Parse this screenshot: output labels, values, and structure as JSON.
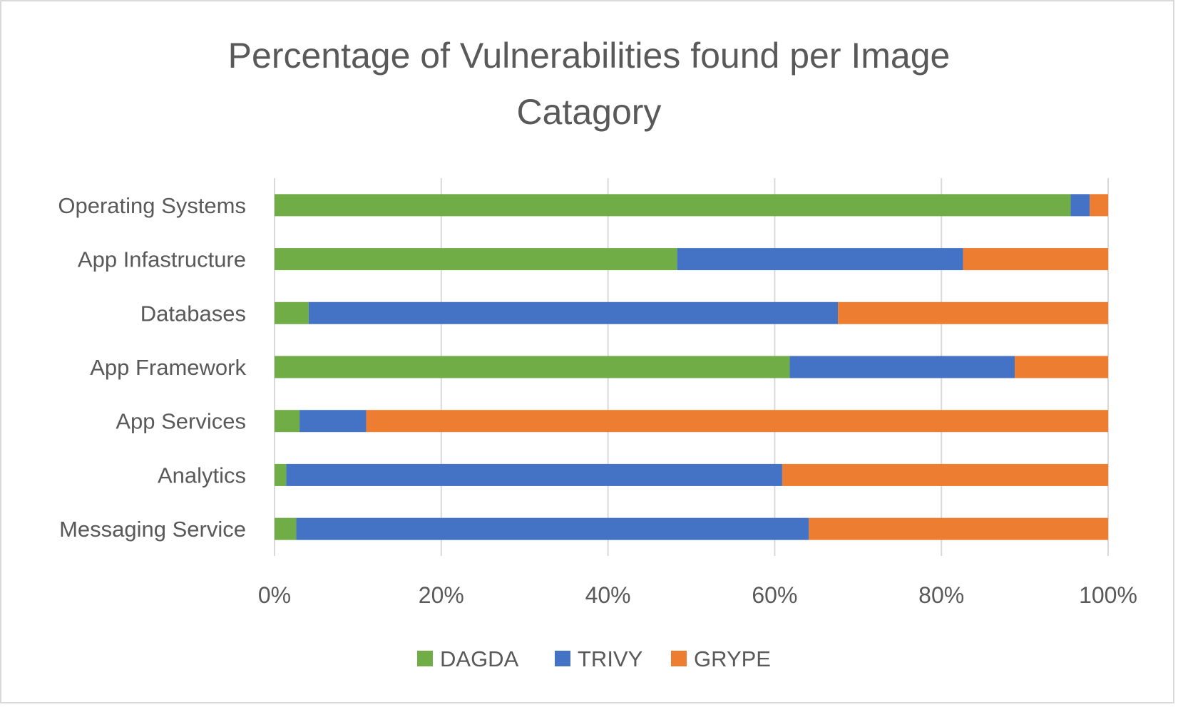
{
  "chart_data": {
    "type": "bar",
    "orientation": "horizontal",
    "stacked": "percent",
    "title": "Percentage of Vulnerabilities found per Image Catagory",
    "title_lines": [
      "Percentage of Vulnerabilities found per Image",
      "Catagory"
    ],
    "xlabel": "",
    "ylabel": "",
    "xlim": [
      0,
      100
    ],
    "x_ticks": [
      "0%",
      "20%",
      "40%",
      "60%",
      "80%",
      "100%"
    ],
    "grid": true,
    "legend_position": "bottom",
    "categories": [
      "Operating Systems",
      "App Infastructure",
      "Databases",
      "App Framework",
      "App Services",
      "Analytics",
      "Messaging Service"
    ],
    "series": [
      {
        "name": "DAGDA",
        "color": "#70ad47",
        "values": [
          95.5,
          48.3,
          4.1,
          61.8,
          3.0,
          1.4,
          2.6
        ]
      },
      {
        "name": "TRIVY",
        "color": "#4472c4",
        "values": [
          2.3,
          34.3,
          63.5,
          27.0,
          8.0,
          59.5,
          61.5
        ]
      },
      {
        "name": "GRYPE",
        "color": "#ed7d31",
        "values": [
          2.2,
          17.4,
          32.4,
          11.2,
          89.0,
          39.1,
          35.9
        ]
      }
    ]
  }
}
